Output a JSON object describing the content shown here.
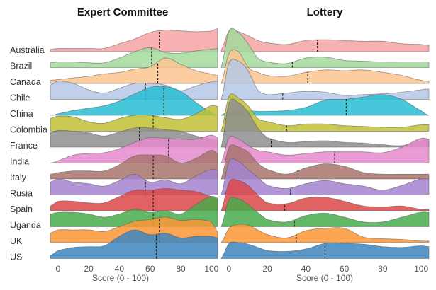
{
  "chart_data": {
    "type": "ridgeline",
    "rows": [
      "Australia",
      "Brazil",
      "Canada",
      "Chile",
      "China",
      "Colombia",
      "France",
      "India",
      "Italy",
      "Rusia",
      "Spain",
      "Uganda",
      "UK",
      "US"
    ],
    "colors": [
      "#f7a3a3",
      "#a3da9c",
      "#fcc48f",
      "#b5c8e6",
      "#27bdd3",
      "#c0bf35",
      "#8e8e8e",
      "#e58bcc",
      "#a8746c",
      "#a482cf",
      "#dc4747",
      "#48ab4c",
      "#fc9736",
      "#3c85c0"
    ],
    "xlabel": "Score (0 - 100)",
    "xticks": [
      "0",
      "20",
      "40",
      "60",
      "80",
      "100"
    ],
    "panels": [
      {
        "title": "Expert Committee",
        "xlim": [
          -5,
          104
        ],
        "grid_x": [
          -5,
          0,
          10,
          20,
          30,
          40,
          50,
          60,
          70,
          80,
          90,
          100,
          104
        ],
        "medians": [
          66,
          61,
          65,
          57,
          69,
          62,
          53,
          72,
          62,
          57,
          62,
          62,
          66,
          64
        ],
        "density_rel": [
          [
            0.15,
            0.2,
            0.2,
            0.2,
            0.2,
            0.5,
            0.8,
            1.2,
            1.35,
            1.3,
            1.25,
            1.3,
            1.45
          ],
          [
            0.3,
            0.35,
            0.35,
            0.3,
            0.3,
            0.6,
            1.0,
            1.25,
            0.95,
            0.9,
            1.05,
            1.15,
            1.2
          ],
          [
            0.2,
            0.25,
            0.35,
            0.45,
            0.6,
            0.7,
            0.9,
            1.05,
            1.6,
            1.2,
            0.8,
            0.6,
            0.5
          ],
          [
            0.9,
            1.15,
            1.0,
            0.6,
            0.4,
            0.7,
            1.0,
            1.0,
            0.9,
            0.55,
            0.85,
            1.1,
            1.15
          ],
          [
            0,
            0.1,
            0.3,
            0.45,
            0.6,
            0.9,
            1.35,
            1.75,
            1.8,
            1.5,
            0.8,
            0.2,
            0
          ],
          [
            0.8,
            0.95,
            0.9,
            0.6,
            0.5,
            0.8,
            1.0,
            1.0,
            0.85,
            0.75,
            1.1,
            1.6,
            1.55
          ],
          [
            0.9,
            1.05,
            1.0,
            0.9,
            0.7,
            0.95,
            1.2,
            1.2,
            1.1,
            1.0,
            0.7,
            0.5,
            0.4
          ],
          [
            0,
            0.15,
            0.5,
            0.6,
            0.65,
            0.9,
            1.3,
            1.6,
            1.55,
            1.5,
            1.5,
            1.75,
            1.6
          ],
          [
            0.3,
            0.4,
            0.5,
            0.5,
            0.5,
            0.9,
            1.45,
            1.5,
            1.45,
            1.0,
            1.3,
            1.8,
            1.6
          ],
          [
            0.8,
            1.0,
            0.8,
            0.7,
            0.55,
            0.9,
            1.3,
            0.8,
            0.95,
            0.7,
            1.2,
            1.6,
            1.55
          ],
          [
            0.3,
            0.6,
            0.6,
            0.5,
            0.5,
            0.9,
            1.3,
            1.3,
            1.4,
            1.3,
            1.2,
            0.9,
            0.7
          ],
          [
            0.8,
            0.9,
            0.9,
            0.8,
            0.6,
            0.8,
            1.1,
            0.9,
            1.0,
            0.8,
            1.4,
            1.9,
            1.8
          ],
          [
            0.6,
            0.8,
            0.8,
            0.8,
            0.7,
            1.0,
            1.35,
            1.45,
            1.6,
            1.4,
            1.45,
            1.3,
            0.7
          ],
          [
            0.2,
            0.5,
            0.7,
            0.75,
            0.8,
            1.4,
            1.8,
            1.5,
            1.6,
            1.3,
            1.4,
            1.4,
            1.3
          ]
        ]
      },
      {
        "title": "Lottery",
        "xlim": [
          -4,
          104
        ],
        "grid_x": [
          -4,
          0,
          5,
          10,
          15,
          20,
          30,
          40,
          50,
          60,
          70,
          80,
          90,
          100,
          104
        ],
        "medians": [
          46,
          33,
          41,
          28,
          61,
          30,
          22,
          55,
          36,
          32,
          29,
          34,
          35,
          50
        ],
        "density_rel": [
          [
            0.1,
            1.3,
            1.25,
            1.0,
            0.7,
            0.55,
            0.45,
            0.7,
            0.75,
            0.7,
            0.65,
            0.65,
            0.5,
            0.45,
            0.4
          ],
          [
            0,
            2.3,
            2.2,
            1.5,
            0.6,
            0.35,
            0.25,
            0.6,
            0.65,
            0.45,
            0.4,
            0.35,
            0.35,
            0.35,
            0.35
          ],
          [
            0,
            1.9,
            2.0,
            1.0,
            0.7,
            0.5,
            0.45,
            0.7,
            0.85,
            0.8,
            0.85,
            0.7,
            0.5,
            0.2,
            0.15
          ],
          [
            0,
            2.3,
            2.4,
            1.8,
            0.6,
            0.3,
            0.4,
            0.5,
            0.45,
            0.25,
            0.3,
            0.35,
            0.45,
            0.6,
            0.65
          ],
          [
            0,
            0.3,
            0.3,
            0.3,
            0.25,
            0.25,
            0.3,
            0.5,
            0.95,
            1.0,
            1.15,
            1.3,
            1.0,
            0.3,
            0
          ],
          [
            0,
            2.2,
            2.1,
            1.6,
            0.8,
            0.6,
            0.35,
            0.45,
            0.45,
            0.35,
            0.3,
            0.25,
            0.25,
            0.4,
            0.4
          ],
          [
            0,
            2.8,
            2.8,
            2.2,
            1.2,
            0.6,
            0.3,
            0.35,
            0.4,
            0.3,
            0.25,
            0.15,
            0.1,
            0.4,
            0.5
          ],
          [
            0,
            1.6,
            1.5,
            1.1,
            0.8,
            0.7,
            0.5,
            0.6,
            0.7,
            0.7,
            0.7,
            0.65,
            1.0,
            1.55,
            1.5
          ],
          [
            0,
            2.0,
            2.0,
            1.7,
            1.0,
            0.6,
            0.3,
            0.7,
            0.95,
            0.8,
            0.4,
            0.3,
            0.3,
            0.3,
            0.3
          ],
          [
            0,
            2.1,
            2.1,
            1.6,
            1.1,
            0.6,
            0.4,
            0.7,
            0.9,
            0.7,
            0.55,
            0.3,
            0.6,
            1.0,
            1.0
          ],
          [
            0,
            1.8,
            1.9,
            1.6,
            1.0,
            0.5,
            0.45,
            0.8,
            0.85,
            0.6,
            0.3,
            0.25,
            0.3,
            0.1,
            0.1
          ],
          [
            0,
            1.7,
            1.75,
            1.4,
            0.9,
            0.45,
            0.3,
            0.7,
            0.85,
            0.6,
            0.3,
            0.3,
            0.6,
            0.9,
            0.9
          ],
          [
            0,
            0.9,
            1.15,
            1.1,
            0.8,
            0.5,
            0.3,
            0.75,
            0.9,
            0.9,
            0.35,
            0.25,
            0.2,
            0.1,
            0.1
          ],
          [
            0,
            0.95,
            1.0,
            0.9,
            0.7,
            0.5,
            0.45,
            0.6,
            0.95,
            0.95,
            0.9,
            0.75,
            0.7,
            0.8,
            0.75
          ]
        ]
      }
    ]
  }
}
